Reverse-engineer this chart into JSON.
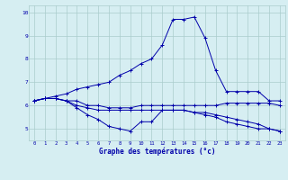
{
  "title": "Graphe des températures (°c)",
  "background_color": "#d6eef2",
  "grid_color": "#aacccc",
  "line_color": "#0000aa",
  "xlim": [
    -0.5,
    23.5
  ],
  "ylim": [
    4.5,
    10.3
  ],
  "xticks": [
    0,
    1,
    2,
    3,
    4,
    5,
    6,
    7,
    8,
    9,
    10,
    11,
    12,
    13,
    14,
    15,
    16,
    17,
    18,
    19,
    20,
    21,
    22,
    23
  ],
  "yticks": [
    5,
    6,
    7,
    8,
    9,
    10
  ],
  "series": {
    "curve1": [
      6.2,
      6.3,
      6.3,
      6.2,
      6.2,
      6.0,
      6.0,
      5.9,
      5.9,
      5.9,
      6.0,
      6.0,
      6.0,
      6.0,
      6.0,
      6.0,
      6.0,
      6.0,
      6.1,
      6.1,
      6.1,
      6.1,
      6.1,
      6.0
    ],
    "curve2": [
      6.2,
      6.3,
      6.3,
      6.2,
      5.9,
      5.6,
      5.4,
      5.1,
      5.0,
      4.9,
      5.3,
      5.3,
      5.8,
      5.8,
      5.8,
      5.7,
      5.6,
      5.5,
      5.3,
      5.2,
      5.1,
      5.0,
      5.0,
      4.9
    ],
    "curve3": [
      6.2,
      6.3,
      6.4,
      6.5,
      6.7,
      6.8,
      6.9,
      7.0,
      7.3,
      7.5,
      7.8,
      8.0,
      8.6,
      9.7,
      9.7,
      9.8,
      8.9,
      7.5,
      6.6,
      6.6,
      6.6,
      6.6,
      6.2,
      6.2
    ],
    "curve4": [
      6.2,
      6.3,
      6.3,
      6.2,
      6.0,
      5.9,
      5.8,
      5.8,
      5.8,
      5.8,
      5.8,
      5.8,
      5.8,
      5.8,
      5.8,
      5.7,
      5.7,
      5.6,
      5.5,
      5.4,
      5.3,
      5.2,
      5.0,
      4.9
    ]
  }
}
